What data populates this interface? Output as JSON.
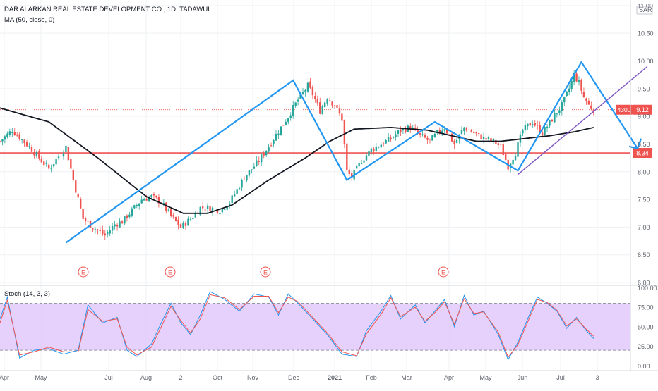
{
  "header": {
    "title": "DAR ALARKAN REAL ESTATE DEVELOPMENT CO., 1D, TADAWUL",
    "ma_label": "MA (50, close, 0)",
    "currency": "SAR"
  },
  "chart_data": [
    {
      "type": "candlestick",
      "title": "DAR ALARKAN REAL ESTATE DEVELOPMENT CO., 1D, TADAWUL",
      "price_axis": {
        "range": [
          5.95,
          11.1
        ],
        "ticks": [
          "11.00",
          "10.50",
          "10.00",
          "9.50",
          "9.00",
          "8.50",
          "8.00",
          "7.50",
          "7.00",
          "6.50",
          "6.00"
        ],
        "tick_values": [
          11.0,
          10.5,
          10.0,
          9.5,
          9.0,
          8.5,
          8.0,
          7.5,
          7.0,
          6.5,
          6.0
        ]
      },
      "time_axis": {
        "labels": [
          "Apr",
          "May",
          "Jul",
          "Aug",
          "2",
          "Oct",
          "Nov",
          "Dec",
          "2021",
          "Feb",
          "Mar",
          "Apr",
          "May",
          "Jun",
          "Jul",
          "3"
        ],
        "bold": [
          "2021"
        ]
      },
      "last_price": {
        "value": 9.12,
        "label": "9.12",
        "volume_label": "4300",
        "color": "#ef5350"
      },
      "support_line": {
        "value": 8.34,
        "label": "8.34",
        "color": "#ef5350"
      },
      "earnings_markers": [
        "E",
        "E",
        "E",
        "E"
      ],
      "price_anchors": [
        [
          0,
          8.55
        ],
        [
          5,
          8.75
        ],
        [
          12,
          8.45
        ],
        [
          20,
          8.05
        ],
        [
          27,
          8.45
        ],
        [
          30,
          7.85
        ],
        [
          34,
          7.15
        ],
        [
          38,
          7.0
        ],
        [
          43,
          6.85
        ],
        [
          47,
          7.05
        ],
        [
          50,
          7.1
        ],
        [
          54,
          7.3
        ],
        [
          58,
          7.5
        ],
        [
          62,
          7.55
        ],
        [
          66,
          7.45
        ],
        [
          70,
          7.2
        ],
        [
          74,
          7.0
        ],
        [
          78,
          7.15
        ],
        [
          82,
          7.35
        ],
        [
          86,
          7.35
        ],
        [
          90,
          7.3
        ],
        [
          94,
          7.45
        ],
        [
          100,
          7.9
        ],
        [
          106,
          8.2
        ],
        [
          112,
          8.6
        ],
        [
          118,
          9.0
        ],
        [
          122,
          9.3
        ],
        [
          126,
          9.55
        ],
        [
          128,
          9.4
        ],
        [
          131,
          9.1
        ],
        [
          134,
          9.35
        ],
        [
          137,
          9.2
        ],
        [
          140,
          8.95
        ],
        [
          142,
          8.0
        ],
        [
          144,
          7.9
        ],
        [
          148,
          8.2
        ],
        [
          152,
          8.4
        ],
        [
          156,
          8.5
        ],
        [
          160,
          8.6
        ],
        [
          164,
          8.75
        ],
        [
          168,
          8.8
        ],
        [
          172,
          8.65
        ],
        [
          176,
          8.55
        ],
        [
          179,
          8.7
        ],
        [
          182,
          8.8
        ],
        [
          186,
          8.5
        ],
        [
          190,
          8.8
        ],
        [
          194,
          8.7
        ],
        [
          198,
          8.6
        ],
        [
          202,
          8.55
        ],
        [
          205,
          8.45
        ],
        [
          208,
          8.1
        ],
        [
          211,
          8.35
        ],
        [
          214,
          8.75
        ],
        [
          218,
          8.9
        ],
        [
          222,
          8.7
        ],
        [
          226,
          8.95
        ],
        [
          230,
          9.2
        ],
        [
          233,
          9.5
        ],
        [
          235,
          9.75
        ],
        [
          237,
          9.6
        ],
        [
          239,
          9.35
        ],
        [
          241,
          9.2
        ],
        [
          243,
          9.12
        ]
      ],
      "ma_anchors": [
        [
          0,
          9.15
        ],
        [
          20,
          8.9
        ],
        [
          40,
          8.25
        ],
        [
          60,
          7.55
        ],
        [
          75,
          7.25
        ],
        [
          85,
          7.25
        ],
        [
          95,
          7.4
        ],
        [
          110,
          7.85
        ],
        [
          125,
          8.25
        ],
        [
          135,
          8.55
        ],
        [
          145,
          8.77
        ],
        [
          160,
          8.8
        ],
        [
          175,
          8.75
        ],
        [
          185,
          8.65
        ],
        [
          195,
          8.55
        ],
        [
          205,
          8.55
        ],
        [
          215,
          8.6
        ],
        [
          225,
          8.65
        ],
        [
          235,
          8.72
        ],
        [
          243,
          8.8
        ]
      ],
      "pattern_lines": {
        "blue_zigzag": [
          [
            27,
            6.72
          ],
          [
            120,
            9.65
          ],
          [
            142,
            7.85
          ],
          [
            178,
            8.9
          ],
          [
            212,
            8.02
          ],
          [
            238,
            9.98
          ],
          [
            261,
            8.42
          ]
        ],
        "purple_trend": [
          [
            212,
            7.95
          ],
          [
            265,
            9.9
          ]
        ]
      }
    },
    {
      "type": "line",
      "title": "Stoch (14, 3, 3)",
      "ylim": [
        -6,
        103
      ],
      "yticks": [
        "100.00",
        "75.00",
        "50.00",
        "25.00",
        "0.00"
      ],
      "ytick_values": [
        100,
        75,
        50,
        25,
        0
      ],
      "band": [
        20,
        80
      ],
      "series": [
        {
          "color": "#2196f3",
          "anchors": [
            [
              0,
              60
            ],
            [
              3,
              88
            ],
            [
              8,
              10
            ],
            [
              14,
              20
            ],
            [
              20,
              22
            ],
            [
              26,
              15
            ],
            [
              32,
              20
            ],
            [
              36,
              78
            ],
            [
              42,
              55
            ],
            [
              48,
              62
            ],
            [
              52,
              20
            ],
            [
              56,
              12
            ],
            [
              62,
              28
            ],
            [
              66,
              55
            ],
            [
              70,
              80
            ],
            [
              74,
              55
            ],
            [
              78,
              40
            ],
            [
              82,
              65
            ],
            [
              86,
              95
            ],
            [
              92,
              85
            ],
            [
              98,
              70
            ],
            [
              104,
              92
            ],
            [
              110,
              88
            ],
            [
              114,
              65
            ],
            [
              118,
              92
            ],
            [
              122,
              80
            ],
            [
              128,
              60
            ],
            [
              134,
              40
            ],
            [
              140,
              15
            ],
            [
              146,
              12
            ],
            [
              150,
              45
            ],
            [
              156,
              70
            ],
            [
              160,
              90
            ],
            [
              164,
              60
            ],
            [
              170,
              78
            ],
            [
              174,
              55
            ],
            [
              178,
              70
            ],
            [
              182,
              85
            ],
            [
              186,
              50
            ],
            [
              190,
              90
            ],
            [
              194,
              65
            ],
            [
              198,
              70
            ],
            [
              204,
              40
            ],
            [
              208,
              8
            ],
            [
              212,
              30
            ],
            [
              216,
              60
            ],
            [
              220,
              88
            ],
            [
              224,
              80
            ],
            [
              228,
              70
            ],
            [
              232,
              48
            ],
            [
              236,
              62
            ],
            [
              240,
              45
            ],
            [
              243,
              35
            ]
          ]
        },
        {
          "color": "#ef5350",
          "anchors": [
            [
              0,
              55
            ],
            [
              3,
              84
            ],
            [
              8,
              14
            ],
            [
              14,
              18
            ],
            [
              20,
              24
            ],
            [
              26,
              18
            ],
            [
              32,
              18
            ],
            [
              36,
              72
            ],
            [
              42,
              57
            ],
            [
              48,
              60
            ],
            [
              52,
              24
            ],
            [
              56,
              14
            ],
            [
              62,
              24
            ],
            [
              66,
              50
            ],
            [
              70,
              76
            ],
            [
              74,
              58
            ],
            [
              78,
              42
            ],
            [
              82,
              60
            ],
            [
              86,
              91
            ],
            [
              92,
              87
            ],
            [
              98,
              72
            ],
            [
              104,
              89
            ],
            [
              110,
              89
            ],
            [
              114,
              68
            ],
            [
              118,
              88
            ],
            [
              122,
              82
            ],
            [
              128,
              62
            ],
            [
              134,
              42
            ],
            [
              140,
              18
            ],
            [
              146,
              13
            ],
            [
              150,
              41
            ],
            [
              156,
              66
            ],
            [
              160,
              87
            ],
            [
              164,
              63
            ],
            [
              170,
              75
            ],
            [
              174,
              57
            ],
            [
              178,
              68
            ],
            [
              182,
              82
            ],
            [
              186,
              53
            ],
            [
              190,
              86
            ],
            [
              194,
              67
            ],
            [
              198,
              69
            ],
            [
              204,
              43
            ],
            [
              208,
              11
            ],
            [
              212,
              27
            ],
            [
              216,
              56
            ],
            [
              220,
              85
            ],
            [
              224,
              81
            ],
            [
              228,
              71
            ],
            [
              232,
              51
            ],
            [
              236,
              60
            ],
            [
              240,
              47
            ],
            [
              243,
              38
            ]
          ]
        }
      ]
    }
  ]
}
